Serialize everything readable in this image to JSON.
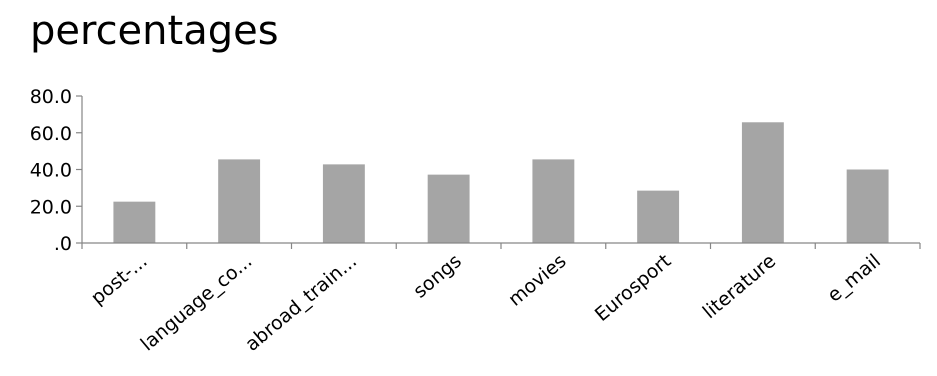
{
  "chart_data": {
    "type": "bar",
    "title": "percentages",
    "xlabel": "",
    "ylabel": "",
    "categories": [
      "post-...",
      "language_co...",
      "abroad_train...",
      "songs",
      "movies",
      "Eurosport",
      "literature",
      "e_mail"
    ],
    "values": [
      22.5,
      45.5,
      42.8,
      37.2,
      45.5,
      28.5,
      65.7,
      40.0
    ],
    "ylim": [
      0,
      80
    ],
    "yticks": [
      0,
      20,
      40,
      60,
      80
    ],
    "ytick_labels": [
      ".0",
      "20.0",
      "40.0",
      "60.0",
      "80.0"
    ],
    "bar_color": "#a5a5a5",
    "grid": false,
    "legend": "none"
  }
}
